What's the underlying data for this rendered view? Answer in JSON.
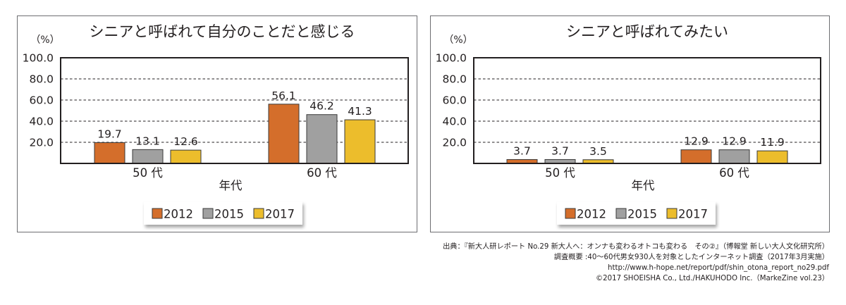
{
  "chart_data": [
    {
      "type": "bar",
      "title": "シニアと呼ばれて自分のことだと感じる",
      "unit_label": "（%）",
      "xlabel": "年代",
      "ylabel": "（%）",
      "ylim": [
        0,
        100
      ],
      "yticks": [
        "20.0",
        "40.0",
        "60.0",
        "80.0",
        "100.0"
      ],
      "grid": true,
      "legend_position": "bottom",
      "categories": [
        "50 代",
        "60 代"
      ],
      "series": [
        {
          "name": "2012",
          "color": "#d46e2b",
          "values": [
            19.7,
            56.1
          ],
          "labels": [
            "19.7",
            "56.1"
          ]
        },
        {
          "name": "2015",
          "color": "#a0a0a0",
          "values": [
            13.1,
            46.2
          ],
          "labels": [
            "13.1",
            "46.2"
          ]
        },
        {
          "name": "2017",
          "color": "#ecbd2c",
          "values": [
            12.6,
            41.3
          ],
          "labels": [
            "12.6",
            "41.3"
          ]
        }
      ]
    },
    {
      "type": "bar",
      "title": "シニアと呼ばれてみたい",
      "unit_label": "（%）",
      "xlabel": "年代",
      "ylabel": "（%）",
      "ylim": [
        0,
        100
      ],
      "yticks": [
        "20.0",
        "40.0",
        "60.0",
        "80.0",
        "100.0"
      ],
      "grid": true,
      "legend_position": "bottom",
      "categories": [
        "50 代",
        "60 代"
      ],
      "series": [
        {
          "name": "2012",
          "color": "#d46e2b",
          "values": [
            3.7,
            12.9
          ],
          "labels": [
            "3.7",
            "12.9"
          ]
        },
        {
          "name": "2015",
          "color": "#a0a0a0",
          "values": [
            3.7,
            12.9
          ],
          "labels": [
            "3.7",
            "12.9"
          ]
        },
        {
          "name": "2017",
          "color": "#ecbd2c",
          "values": [
            3.5,
            11.9
          ],
          "labels": [
            "3.5",
            "11.9"
          ]
        }
      ]
    }
  ],
  "footer": {
    "source": "出典：『新大人研レポート No.29 新大人へ：オンナも変わるオトコも変わる　その②』（博報堂 新しい大人文化研究所）",
    "survey": "調査概要 :40～60代男女930人を対象としたインターネット調査（2017年3月実施）",
    "url": "http://www.h-hope.net/report/pdf/shin_otona_report_no29.pdf",
    "copyright": "©2017 SHOEISHA Co., Ltd./HAKUHODO Inc.（MarkeZine vol.23）"
  }
}
